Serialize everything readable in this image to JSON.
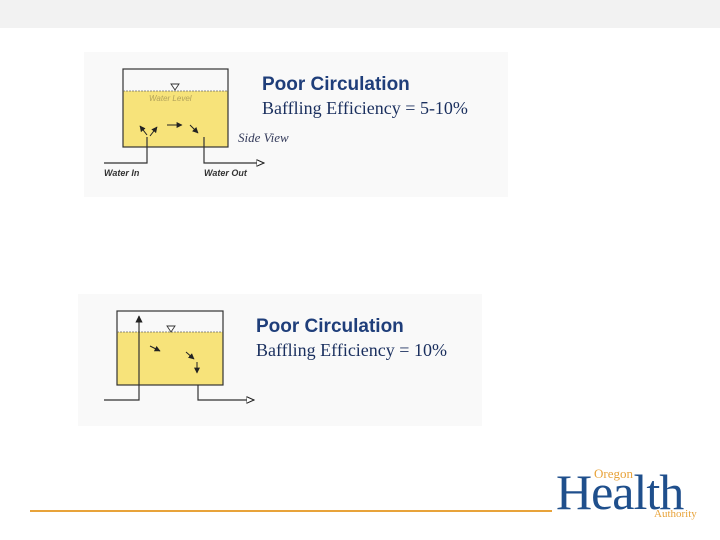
{
  "diagram1": {
    "title": "Poor Circulation",
    "efficiency": "Baffling Efficiency = 5-10%",
    "water_level_label": "Water Level",
    "side_view_label": "Side View",
    "water_in_label": "Water In",
    "water_out_label": "Water Out"
  },
  "diagram2": {
    "title": "Poor Circulation",
    "efficiency": "Baffling Efficiency = 10%"
  },
  "logo": {
    "oregon": "Oregon",
    "health": "Health",
    "authority": "Authority"
  },
  "colors": {
    "water": "#f7e37a",
    "title": "#1f3e7a",
    "accent": "#e8a33a",
    "brand": "#1f4f8c"
  }
}
